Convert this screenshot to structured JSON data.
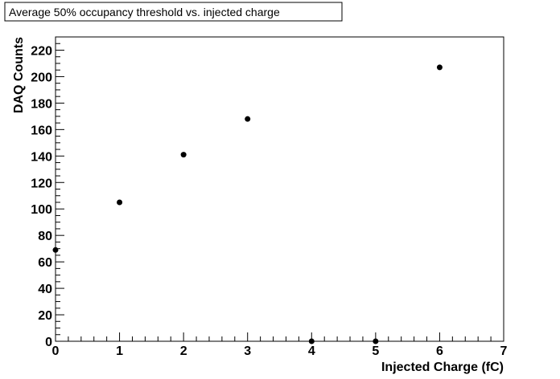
{
  "chart_data": {
    "type": "scatter",
    "title": "Average 50% occupancy threshold vs. injected charge",
    "xlabel": "Injected Charge (fC)",
    "ylabel": "DAQ Counts",
    "xlim": [
      0,
      7
    ],
    "ylim": [
      0,
      230
    ],
    "x_ticks": [
      0,
      1,
      2,
      3,
      4,
      5,
      6,
      7
    ],
    "y_ticks": [
      0,
      20,
      40,
      60,
      80,
      100,
      120,
      140,
      160,
      180,
      200,
      220
    ],
    "x_minor_step": 0.2,
    "y_minor_step": 5,
    "grid": false,
    "series": [
      {
        "x": [
          0,
          1,
          2,
          3,
          4,
          5,
          6
        ],
        "y": [
          69,
          105,
          141,
          168,
          0,
          0,
          207
        ]
      }
    ],
    "colors": {
      "marker": "#000000",
      "axis": "#000000",
      "background": "#ffffff"
    }
  }
}
